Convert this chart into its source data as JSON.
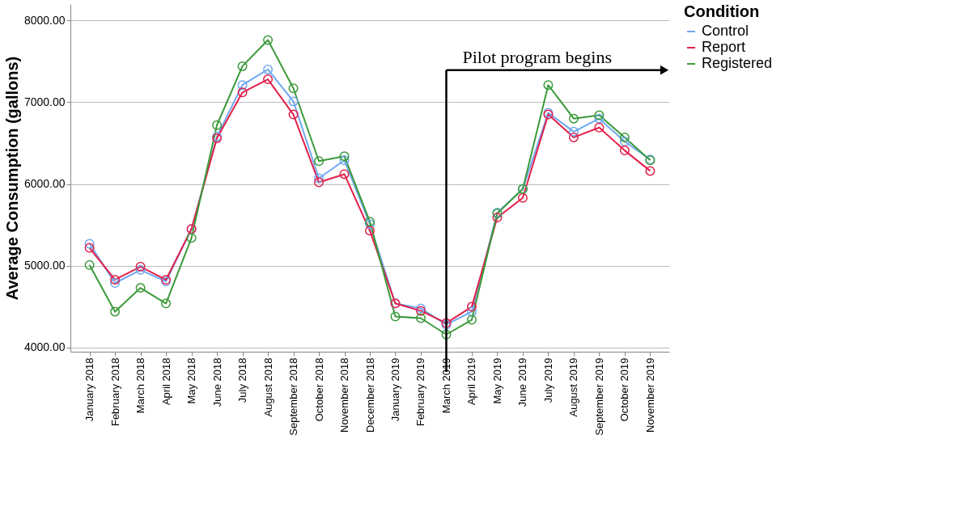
{
  "chart_data": {
    "type": "line",
    "ylabel": "Average Consumption (gallons)",
    "legend_title": "Condition",
    "categories": [
      "January 2018",
      "February 2018",
      "March 2018",
      "April 2018",
      "May 2018",
      "June 2018",
      "July 2018",
      "August 2018",
      "September 2018",
      "October 2018",
      "November 2018",
      "December 2018",
      "January 2019",
      "February 2019",
      "March 2019",
      "April 2019",
      "May 2019",
      "June 2019",
      "July 2019",
      "August 2019",
      "September 2019",
      "October 2019",
      "November 2019"
    ],
    "series": [
      {
        "name": "Control",
        "color": "#6fa8f0",
        "values": [
          5270,
          4790,
          4950,
          4810,
          5450,
          6580,
          7210,
          7400,
          7010,
          6070,
          6290,
          5510,
          4540,
          4480,
          4280,
          4440,
          5650,
          5940,
          6870,
          6640,
          6800,
          6520,
          6300
        ]
      },
      {
        "name": "Report",
        "color": "#e3204a",
        "values": [
          5220,
          4830,
          4990,
          4830,
          5450,
          6560,
          7120,
          7280,
          6850,
          6020,
          6120,
          5430,
          4540,
          4450,
          4300,
          4500,
          5590,
          5830,
          6850,
          6570,
          6690,
          6410,
          6160
        ]
      },
      {
        "name": "Registered",
        "color": "#3a9a3a",
        "values": [
          5010,
          4440,
          4730,
          4540,
          5340,
          6720,
          7440,
          7760,
          7170,
          6280,
          6340,
          5540,
          4380,
          4360,
          4160,
          4340,
          5640,
          5940,
          7210,
          6800,
          6840,
          6570,
          6290
        ]
      }
    ],
    "ylim": [
      3950,
      8200
    ],
    "yticks": [
      {
        "value": 4000,
        "label": "4000.00"
      },
      {
        "value": 5000,
        "label": "5000.00"
      },
      {
        "value": 6000,
        "label": "6000.00"
      },
      {
        "value": 7000,
        "label": "7000.00"
      },
      {
        "value": 8000,
        "label": "8000.00"
      }
    ],
    "grid": "y",
    "legend": "top right",
    "marker": "circle",
    "line_style": "solid",
    "ref_lines": [
      {
        "axis": "x",
        "value": "March 2019",
        "label": "Pilot program begins",
        "color": "#000000"
      }
    ]
  }
}
